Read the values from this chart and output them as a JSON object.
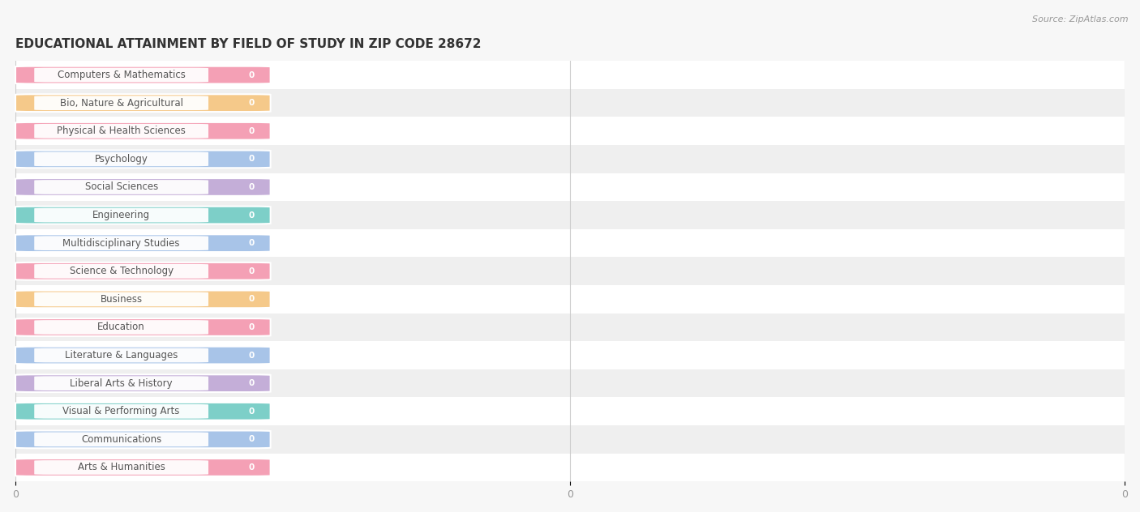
{
  "title": "EDUCATIONAL ATTAINMENT BY FIELD OF STUDY IN ZIP CODE 28672",
  "source": "Source: ZipAtlas.com",
  "categories": [
    "Computers & Mathematics",
    "Bio, Nature & Agricultural",
    "Physical & Health Sciences",
    "Psychology",
    "Social Sciences",
    "Engineering",
    "Multidisciplinary Studies",
    "Science & Technology",
    "Business",
    "Education",
    "Literature & Languages",
    "Liberal Arts & History",
    "Visual & Performing Arts",
    "Communications",
    "Arts & Humanities"
  ],
  "values": [
    0,
    0,
    0,
    0,
    0,
    0,
    0,
    0,
    0,
    0,
    0,
    0,
    0,
    0,
    0
  ],
  "bar_colors": [
    "#f4a0b5",
    "#f5c98a",
    "#f4a0b5",
    "#a8c4e8",
    "#c4aed8",
    "#7dcfc8",
    "#a8c4e8",
    "#f4a0b5",
    "#f5c98a",
    "#f4a0b5",
    "#a8c4e8",
    "#c4aed8",
    "#7dcfc8",
    "#a8c4e8",
    "#f4a0b5"
  ],
  "background_color": "#f7f7f7",
  "row_even_color": "#ffffff",
  "row_odd_color": "#efefef",
  "title_fontsize": 11,
  "source_fontsize": 8,
  "label_fontsize": 8.5,
  "value_fontsize": 7.5,
  "xtick_labels": [
    "0",
    "0",
    "0"
  ],
  "xtick_positions": [
    0.0,
    0.5,
    1.0
  ]
}
